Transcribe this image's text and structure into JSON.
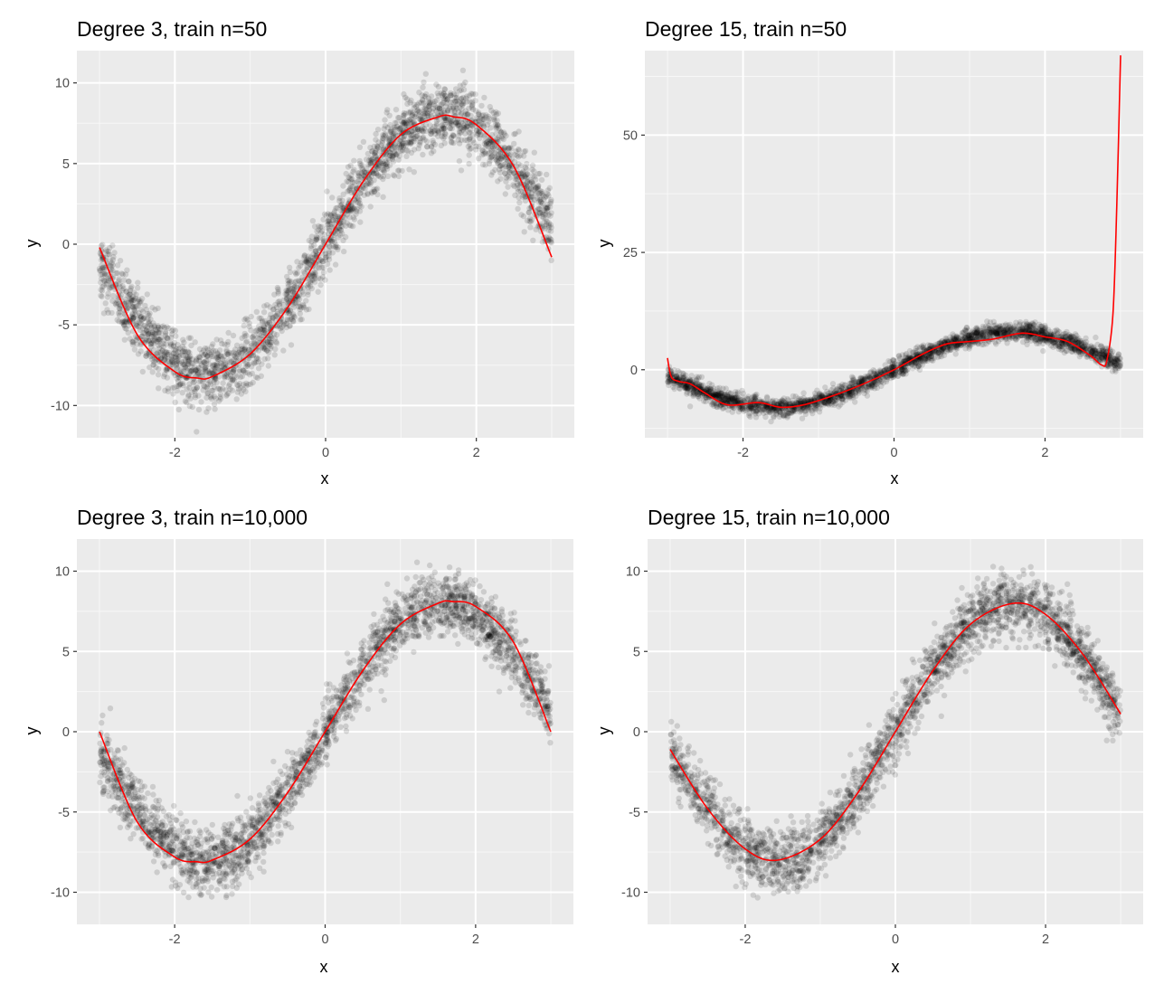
{
  "figure": {
    "colors": {
      "panel_background": "#ebebeb",
      "grid_major": "#ffffff",
      "grid_minor": "#f5f5f5",
      "points": "#000000",
      "fit_line": "#ff0000",
      "tick_text": "#4d4d4d"
    }
  },
  "chart_data": [
    {
      "type": "scatter",
      "title": "Degree 3, train n=50",
      "xlabel": "x",
      "ylabel": "y",
      "xlim": [
        -3.3,
        3.3
      ],
      "ylim": [
        -12,
        12
      ],
      "xticks": [
        -2,
        0,
        2
      ],
      "xtick_labels": [
        "-2",
        "0",
        "2"
      ],
      "yticks": [
        -10,
        -5,
        0,
        5,
        10
      ],
      "ytick_labels": [
        "-10",
        "-5",
        "0",
        "5",
        "10"
      ],
      "grid": true,
      "points": {
        "description_source": "noisy sine: y = 8*sin(x)",
        "x_range": [
          -3,
          3
        ],
        "noise_sd": 1.0,
        "count": 10000,
        "color": "#000000",
        "alpha": 0.12
      },
      "fit": {
        "name": "degree 3 fit",
        "color": "#ff0000",
        "x": [
          -3.0,
          -2.5,
          -2.0,
          -1.7,
          -1.5,
          -1.0,
          -0.5,
          0.0,
          0.5,
          1.0,
          1.5,
          1.7,
          2.0,
          2.5,
          3.0
        ],
        "y": [
          -0.2,
          -5.6,
          -7.9,
          -8.3,
          -8.2,
          -6.8,
          -3.9,
          0.0,
          3.9,
          6.8,
          7.9,
          7.9,
          7.4,
          4.8,
          -0.8
        ]
      }
    },
    {
      "type": "scatter",
      "title": "Degree 15, train n=50",
      "xlabel": "x",
      "ylabel": "y",
      "xlim": [
        -3.3,
        3.3
      ],
      "ylim": [
        -14.5,
        68
      ],
      "xticks": [
        -2,
        0,
        2
      ],
      "xtick_labels": [
        "-2",
        "0",
        "2"
      ],
      "yticks": [
        0,
        25,
        50
      ],
      "ytick_labels": [
        "0",
        "25",
        "50"
      ],
      "grid": true,
      "points": {
        "description_source": "noisy sine: y = 8*sin(x)",
        "x_range": [
          -3,
          3
        ],
        "noise_sd": 1.0,
        "count": 10000,
        "color": "#000000",
        "alpha": 0.12
      },
      "fit": {
        "name": "degree 15 fit",
        "color": "#ff0000",
        "x": [
          -3.0,
          -2.95,
          -2.85,
          -2.7,
          -2.5,
          -2.2,
          -1.8,
          -1.5,
          -1.2,
          -0.8,
          -0.4,
          0.0,
          0.4,
          0.7,
          1.0,
          1.3,
          1.7,
          2.0,
          2.3,
          2.6,
          2.75,
          2.82,
          2.9,
          2.95,
          3.0
        ],
        "y": [
          2.5,
          -1.5,
          -2.5,
          -3.0,
          -5.0,
          -7.5,
          -7.0,
          -8.0,
          -7.5,
          -5.5,
          -3.0,
          0.0,
          3.5,
          5.5,
          6.0,
          6.5,
          7.8,
          7.0,
          6.0,
          3.0,
          1.0,
          2.0,
          12.0,
          35.0,
          67.0
        ]
      }
    },
    {
      "type": "scatter",
      "title": "Degree 3, train n=10,000",
      "xlabel": "x",
      "ylabel": "y",
      "xlim": [
        -3.3,
        3.3
      ],
      "ylim": [
        -12,
        12
      ],
      "xticks": [
        -2,
        0,
        2
      ],
      "xtick_labels": [
        "-2",
        "0",
        "2"
      ],
      "yticks": [
        -10,
        -5,
        0,
        5,
        10
      ],
      "ytick_labels": [
        "-10",
        "-5",
        "0",
        "5",
        "10"
      ],
      "grid": true,
      "points": {
        "description_source": "noisy sine: y = 8*sin(x)",
        "x_range": [
          -3,
          3
        ],
        "noise_sd": 1.0,
        "count": 10000,
        "color": "#000000",
        "alpha": 0.12
      },
      "fit": {
        "name": "degree 3 fit",
        "color": "#ff0000",
        "x": [
          -3.0,
          -2.5,
          -2.0,
          -1.7,
          -1.5,
          -1.0,
          -0.5,
          0.0,
          0.5,
          1.0,
          1.5,
          1.7,
          2.0,
          2.5,
          3.0
        ],
        "y": [
          0.0,
          -5.6,
          -7.8,
          -8.1,
          -8.0,
          -6.7,
          -3.8,
          0.0,
          3.8,
          6.7,
          8.0,
          8.1,
          7.8,
          5.6,
          0.0
        ]
      }
    },
    {
      "type": "scatter",
      "title": "Degree 15, train n=10,000",
      "xlabel": "x",
      "ylabel": "y",
      "xlim": [
        -3.3,
        3.3
      ],
      "ylim": [
        -12,
        12
      ],
      "xticks": [
        -2,
        0,
        2
      ],
      "xtick_labels": [
        "-2",
        "0",
        "2"
      ],
      "yticks": [
        -10,
        -5,
        0,
        5,
        10
      ],
      "ytick_labels": [
        "-10",
        "-5",
        "0",
        "5",
        "10"
      ],
      "grid": true,
      "points": {
        "description_source": "noisy sine: y = 8*sin(x)",
        "x_range": [
          -3,
          3
        ],
        "noise_sd": 1.0,
        "count": 10000,
        "color": "#000000",
        "alpha": 0.12
      },
      "fit": {
        "name": "degree 15 fit",
        "color": "#ff0000",
        "x": [
          -3.0,
          -2.5,
          -2.0,
          -1.57,
          -1.0,
          -0.5,
          0.0,
          0.5,
          1.0,
          1.57,
          2.0,
          2.5,
          3.0
        ],
        "y": [
          -1.1,
          -4.8,
          -7.3,
          -8.0,
          -6.7,
          -3.8,
          0.0,
          3.8,
          6.7,
          8.0,
          7.3,
          4.8,
          1.1
        ]
      }
    }
  ]
}
